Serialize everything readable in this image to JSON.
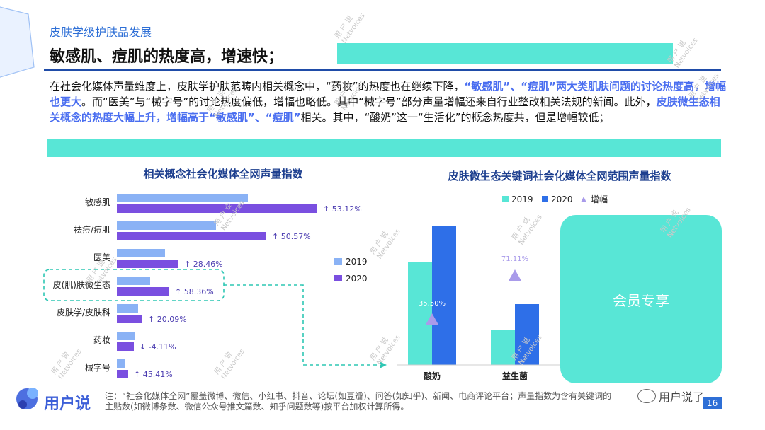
{
  "header": {
    "section_label": "皮肤学级护肤品发展",
    "headline": "敏感肌、痘肌的热度高，增速快；"
  },
  "body": {
    "s1": "在社会化媒体声量维度上，皮肤学护肤范畴内相关概念中，“药妆”的热度也在继续下降，",
    "s2": "“敏感肌”、“痘肌”两大类肌肤问题的讨论热度高，增幅也更大",
    "s3": "。而“医美”与“械字号”的讨论热度偏低，增幅也略低。其中“械字号”部分声量增幅还来自行业整改相关法规的新闻。此外，",
    "s4": "皮肤微生态相关概念的热度大幅上升，增幅高于“敏感肌”、“痘肌”",
    "s5": "相关。其中，“酸奶”这一“生活化”的概念热度共，但是增幅较低；"
  },
  "colors": {
    "teal": "#58e6d6",
    "bar_2019_left": "#8ab2f5",
    "bar_2020_left": "#7a4fe0",
    "bar_2019_right": "#58e6d6",
    "bar_2020_right": "#2e6fe8",
    "growth_marker": "#a99bea",
    "title_blue": "#1d3f8f"
  },
  "chart_data": [
    {
      "type": "bar",
      "orientation": "horizontal",
      "title": "相关概念社会化媒体全网声量指数",
      "categories": [
        "敏感肌",
        "祛痘/痘肌",
        "医美",
        "皮(肌)肤微生态",
        "皮肤学/皮肤科",
        "药妆",
        "械字号"
      ],
      "series": [
        {
          "name": "2019",
          "values": [
            185,
            140,
            68,
            47,
            30,
            25,
            11
          ]
        },
        {
          "name": "2020",
          "values": [
            283,
            211,
            87,
            74,
            36,
            24,
            16
          ]
        }
      ],
      "growth_labels": [
        "↑ 53.12%",
        "↑ 50.57%",
        "↑ 28.46%",
        "↑ 58.36%",
        "↑ 20.09%",
        "↓ -4.11%",
        "↑ 45.41%"
      ],
      "highlight": "皮(肌)肤微生态",
      "legend": "right"
    },
    {
      "type": "bar",
      "title": "皮肤微生态关键词社会化媒体全网范围声量指数",
      "categories": [
        "酸奶",
        "益生菌"
      ],
      "series": [
        {
          "name": "2019",
          "values": [
            145,
            50
          ]
        },
        {
          "name": "2020",
          "values": [
            196,
            86
          ]
        }
      ],
      "growth": {
        "name": "增幅",
        "values": [
          "35.50%",
          "71.11%"
        ]
      },
      "legend": "top"
    }
  ],
  "overlay": {
    "members_only": "会员专享"
  },
  "footnote": {
    "line1": "注：“社会化媒体全网”覆盖微博、微信、小红书、抖音、论坛(如豆瓣)、问答(如知乎)、新闻、电商评论平台；声量指数为含有关键词的",
    "line2": "主贴数(如微博条数、微信公众号推文篇数、知乎问题数等)按平台加权计算所得。"
  },
  "brand": {
    "logo_text": "用户说",
    "wechat_label": "用户说了",
    "watermark": "用 户 说\nNetvoices"
  },
  "page_number": "16"
}
